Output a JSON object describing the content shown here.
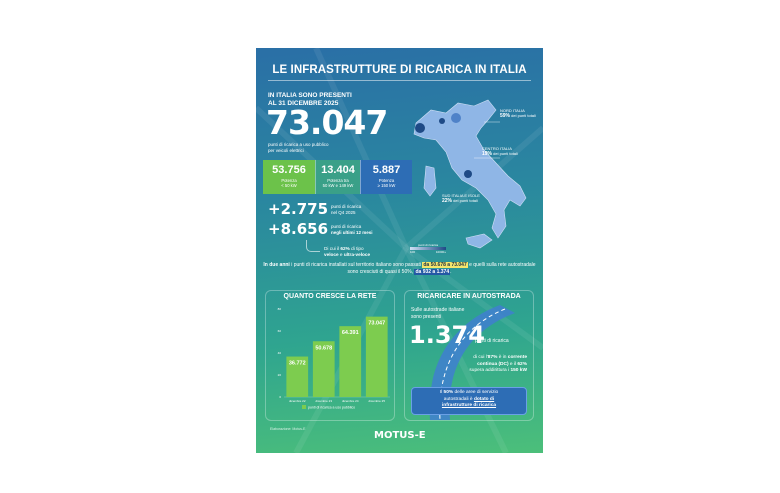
{
  "title": "LE INFRASTRUTTURE DI RICARICA IN ITALIA",
  "intro": {
    "line1": "IN ITALIA SONO PRESENTI",
    "line2": "AL 31 DICEMBRE 2025",
    "total": "73.047",
    "sub1": "punti di ricarica a uso pubblico",
    "sub2": "per veicoli elettrici"
  },
  "boxes": [
    {
      "value": "53.756",
      "l1": "Potenza",
      "l2": "< 50 kW",
      "color": "#6cc24a"
    },
    {
      "value": "13.404",
      "l1": "Potenza tra",
      "l2": "50 kW e 149 kW",
      "color": "#3aa088"
    },
    {
      "value": "5.887",
      "l1": "Potenza",
      "l2": "≥ 150 kW",
      "color": "#2d6db5"
    }
  ],
  "growth": [
    {
      "value": "+2.775",
      "l1": "punti di ricarica",
      "l2": "nel Q4 2025"
    },
    {
      "value": "+8.656",
      "l1": "punti di ricarica",
      "l2": "negli ultimi 12 mesi"
    }
  ],
  "note": {
    "a": "Di cui il ",
    "b": "62%",
    "c": " di tipo",
    "d": "veloce",
    "e": " e ",
    "f": "ultra-veloce"
  },
  "map": {
    "regions": [
      {
        "name": "NORD ITALIA",
        "pct": "59%",
        "suffix": " dei punti totali"
      },
      {
        "name": "CENTRO ITALIA",
        "pct": "19%",
        "suffix": " dei punti totali"
      },
      {
        "name": "SUD ITALIA E ISOLE",
        "pct": "22%",
        "suffix": " dei punti totali"
      }
    ],
    "legend_title": "punti di ricarica",
    "legend_min": "100",
    "legend_max": "10000+"
  },
  "paragraph": {
    "a": "In due anni",
    "b": " i punti di ricarica installati sul territorio italiano sono passati ",
    "c": "da 50.678 a 73.047",
    "d": " e quelli sulla rete autostradale sono cresciuti di quasi il 50%, ",
    "e": "da 932 a 1.374",
    "f": "."
  },
  "chart_data": {
    "type": "bar",
    "title": "QUANTO CRESCE LA RETE",
    "categories": [
      "dicembre 22",
      "dicembre 23",
      "dicembre 24",
      "dicembre 25"
    ],
    "values": [
      36772,
      50678,
      64391,
      73047
    ],
    "labels": [
      "36.772",
      "50.678",
      "64.391",
      "73.047"
    ],
    "ylim": [
      0,
      80000
    ],
    "yticks": [
      "0",
      "20",
      "40",
      "60",
      "80"
    ],
    "legend": "punti di ricarica a uso pubblico",
    "color": "#7dcc4f"
  },
  "source": "Elaborazione: Motus-E",
  "highway": {
    "title": "RICARICARE IN AUTOSTRADA",
    "intro1": "Sulle autostrade italiane",
    "intro2": "sono presenti",
    "value": "1.374",
    "value_label": "punti di ricarica",
    "d1": "di cui l'",
    "d2": "87%",
    "d3": " è in ",
    "d4": "corrente",
    "d5": "continua (DC)",
    "d6": " e il ",
    "d7": "62%",
    "d8": "supera addirittura i ",
    "d9": "150 kW",
    "box1": "Il ",
    "box2": "50%",
    "box3": " delle aree di servizio",
    "box4": "autostradali è ",
    "box5": "dotato di",
    "box6": "infrastrutture di ricarica"
  },
  "logo": "MOTUS-E"
}
